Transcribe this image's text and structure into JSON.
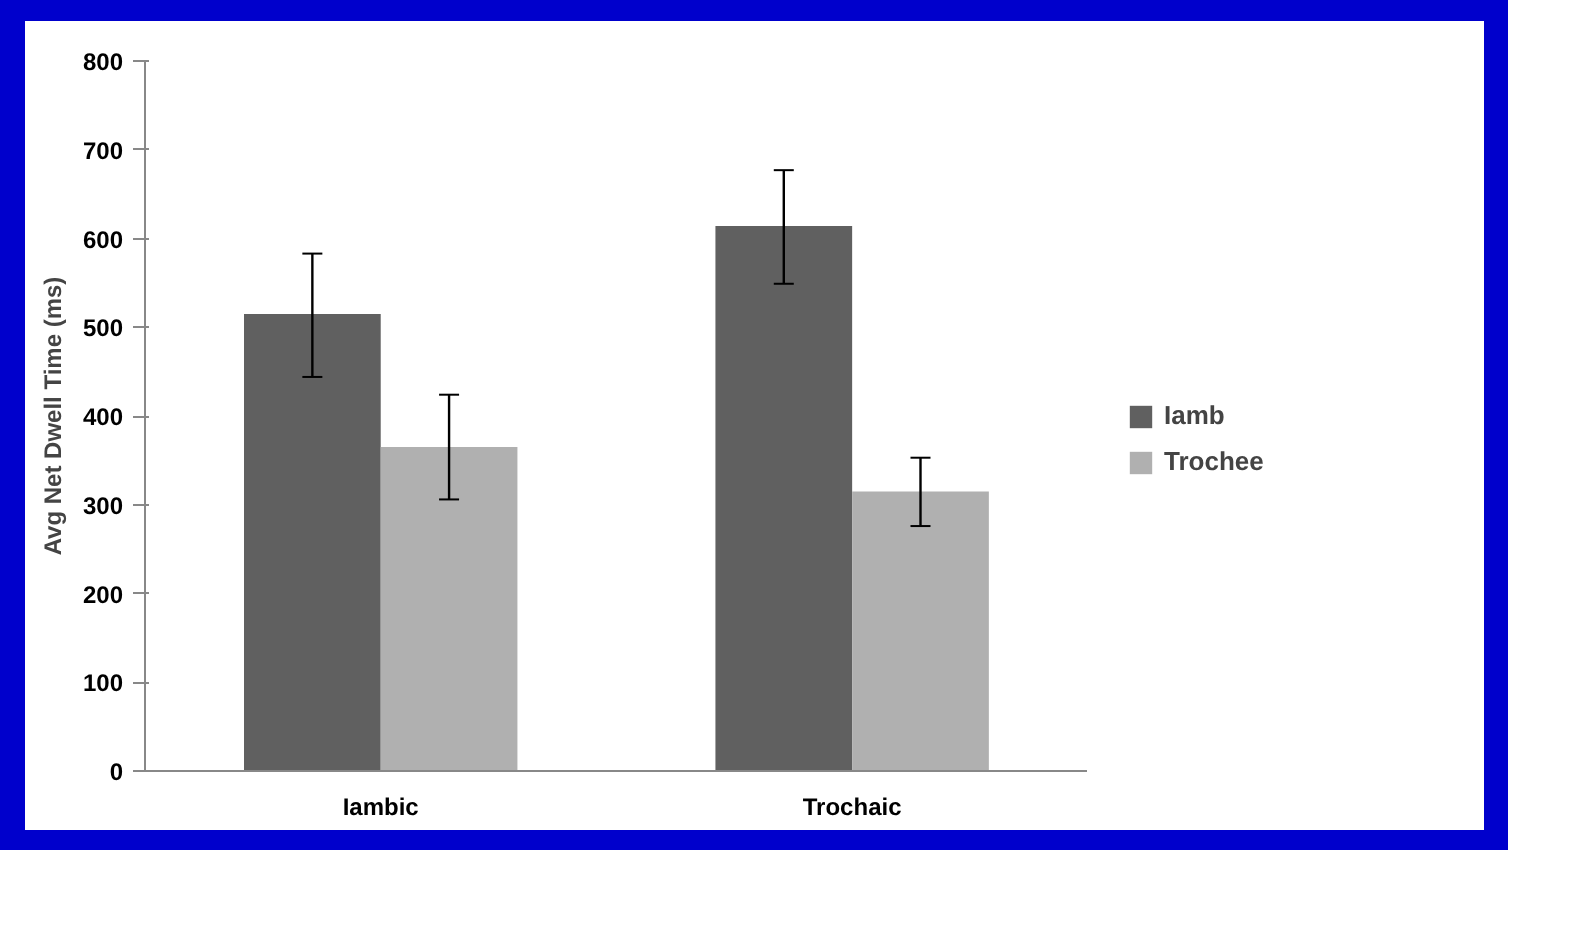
{
  "chart_data": {
    "type": "bar",
    "ylabel": "Avg Net Dwell Time (ms)",
    "categories": [
      "Iambic",
      "Trochaic"
    ],
    "series": [
      {
        "name": "Iamb",
        "color": "#606060",
        "values": [
          515,
          614
        ],
        "errors": [
          [
            444,
            583
          ],
          [
            549,
            677
          ]
        ]
      },
      {
        "name": "Trochee",
        "color": "#b0b0b0",
        "values": [
          365,
          315
        ],
        "errors": [
          [
            306,
            424
          ],
          [
            276,
            353
          ]
        ]
      }
    ],
    "ylim": [
      0,
      800
    ],
    "yticks": [
      0,
      100,
      200,
      300,
      400,
      500,
      600,
      700,
      800
    ],
    "grid": false,
    "legend": "right"
  }
}
